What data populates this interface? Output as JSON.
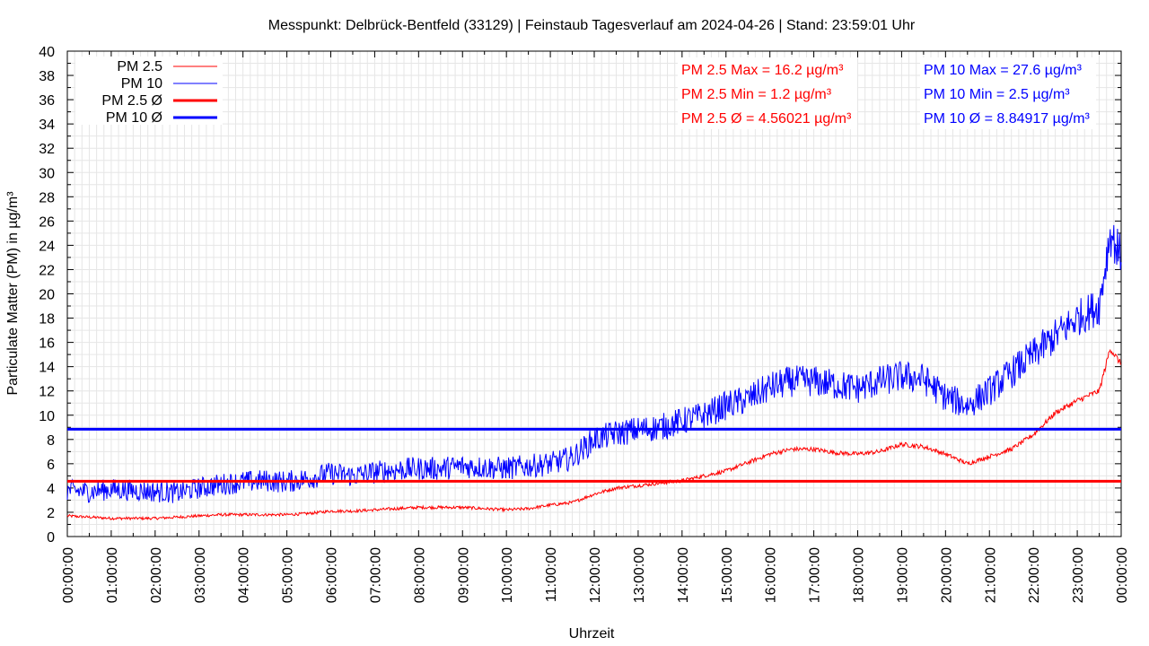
{
  "chart_data": {
    "type": "line",
    "title": "Messpunkt: Delbrück-Bentfeld (33129) | Feinstaub Tagesverlauf am 2024-04-26 | Stand: 23:59:01 Uhr",
    "xlabel": "Uhrzeit",
    "ylabel": "Particulate Matter (PM) in µg/m³",
    "ylim": [
      0,
      40
    ],
    "yticks": [
      "0",
      "2",
      "4",
      "6",
      "8",
      "10",
      "12",
      "14",
      "16",
      "18",
      "20",
      "22",
      "24",
      "26",
      "28",
      "30",
      "32",
      "34",
      "36",
      "38",
      "40"
    ],
    "xticks": [
      "00:00:00",
      "01:00:00",
      "02:00:00",
      "03:00:00",
      "04:00:00",
      "05:00:00",
      "06:00:00",
      "07:00:00",
      "08:00:00",
      "09:00:00",
      "10:00:00",
      "11:00:00",
      "12:00:00",
      "13:00:00",
      "14:00:00",
      "15:00:00",
      "16:00:00",
      "17:00:00",
      "18:00:00",
      "19:00:00",
      "20:00:00",
      "21:00:00",
      "22:00:00",
      "23:00:00",
      "00:00:00"
    ],
    "xlim_hours": [
      0,
      24
    ],
    "grid": true,
    "legend_position": "top-left",
    "series": [
      {
        "name": "PM 2.5",
        "color": "#ff0000",
        "x_hours": [
          0,
          0.5,
          1,
          1.5,
          2,
          2.5,
          3,
          3.5,
          4,
          4.5,
          5,
          5.5,
          6,
          6.5,
          7,
          7.5,
          8,
          8.5,
          9,
          9.5,
          10,
          10.5,
          11,
          11.5,
          12,
          12.5,
          13,
          13.5,
          14,
          14.5,
          15,
          15.5,
          16,
          16.5,
          17,
          17.5,
          18,
          18.5,
          19,
          19.5,
          20,
          20.5,
          21,
          21.5,
          22,
          22.5,
          23,
          23.5,
          23.75,
          24
        ],
        "values": [
          1.7,
          1.6,
          1.5,
          1.5,
          1.5,
          1.6,
          1.7,
          1.8,
          1.8,
          1.8,
          1.8,
          1.9,
          2.1,
          2.1,
          2.2,
          2.3,
          2.4,
          2.4,
          2.4,
          2.3,
          2.2,
          2.3,
          2.6,
          2.8,
          3.5,
          4.0,
          4.2,
          4.4,
          4.6,
          5.0,
          5.4,
          6.1,
          6.8,
          7.2,
          7.2,
          6.9,
          6.8,
          7.0,
          7.6,
          7.4,
          6.8,
          6.0,
          6.6,
          7.2,
          8.4,
          10.2,
          11.2,
          12.0,
          15.5,
          14.2
        ],
        "stats": {
          "max": "PM 2.5 Max = 16.2 µg/m³",
          "min": "PM 2.5 Min = 1.2 µg/m³",
          "avg": "PM 2.5 Ø = 4.56021 µg/m³"
        }
      },
      {
        "name": "PM 10",
        "color": "#0000ff",
        "x_hours": [
          0,
          0.5,
          1,
          1.5,
          2,
          2.5,
          3,
          3.5,
          4,
          4.5,
          5,
          5.5,
          6,
          6.5,
          7,
          7.5,
          8,
          8.5,
          9,
          9.5,
          10,
          10.5,
          11,
          11.5,
          12,
          12.5,
          13,
          13.5,
          14,
          14.5,
          15,
          15.5,
          16,
          16.5,
          17,
          17.5,
          18,
          18.5,
          19,
          19.5,
          20,
          20.5,
          21,
          21.5,
          22,
          22.5,
          23,
          23.5,
          23.75,
          24
        ],
        "values": [
          3.8,
          3.7,
          3.9,
          3.8,
          3.7,
          3.6,
          4.0,
          4.3,
          4.5,
          4.6,
          4.5,
          4.8,
          5.2,
          5.0,
          5.3,
          5.5,
          5.6,
          5.6,
          5.8,
          5.7,
          5.6,
          5.8,
          6.0,
          6.5,
          8.0,
          8.5,
          8.8,
          9.0,
          9.5,
          10.0,
          10.8,
          11.3,
          12.3,
          12.8,
          12.8,
          12.5,
          12.2,
          12.8,
          13.2,
          13.0,
          11.5,
          10.8,
          12.0,
          13.5,
          15.0,
          16.5,
          18.0,
          19.0,
          25.0,
          23.0
        ],
        "stats": {
          "max": "PM 10 Max = 27.6 µg/m³",
          "min": "PM 10 Min = 2.5 µg/m³",
          "avg": "PM 10 Ø = 8.84917 µg/m³"
        }
      },
      {
        "name": "PM 2.5 Ø",
        "color": "#ff0000",
        "constant": 4.56021
      },
      {
        "name": "PM 10 Ø",
        "color": "#0000ff",
        "constant": 8.84917
      }
    ]
  }
}
